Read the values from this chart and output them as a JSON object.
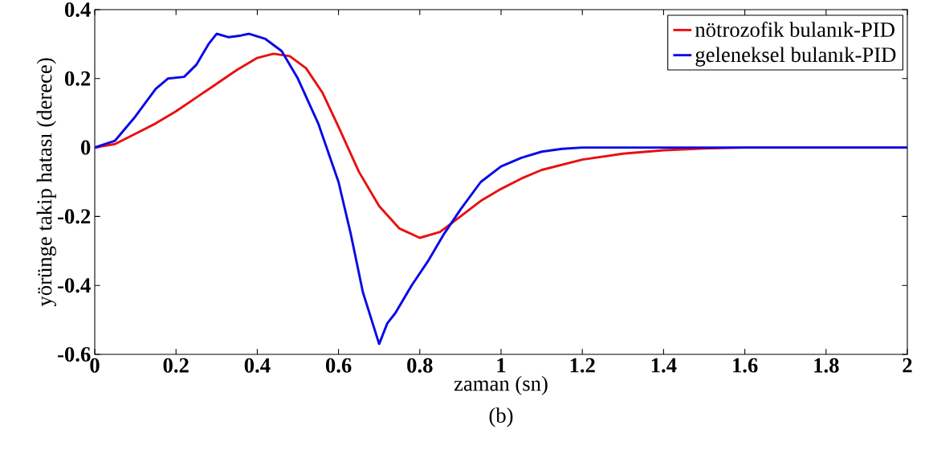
{
  "chart_data": {
    "type": "line",
    "xlabel": "zaman (sn)",
    "ylabel": "yörünge takip hatası (derece)",
    "annotations": [
      "(b)"
    ],
    "xlim": [
      0,
      2
    ],
    "ylim": [
      -0.6,
      0.4
    ],
    "xticks": [
      0,
      0.2,
      0.4,
      0.6,
      0.8,
      1,
      1.2,
      1.4,
      1.6,
      1.8,
      2
    ],
    "yticks": [
      -0.6,
      -0.4,
      -0.2,
      0,
      0.2,
      0.4
    ],
    "grid": false,
    "legend": "top right",
    "line_style": "solid",
    "marker": "none",
    "series": [
      {
        "name": "nötrozofik bulanık-PID",
        "color": "#e81010",
        "x": [
          0,
          0.05,
          0.1,
          0.15,
          0.2,
          0.25,
          0.3,
          0.35,
          0.4,
          0.44,
          0.48,
          0.52,
          0.56,
          0.6,
          0.65,
          0.7,
          0.75,
          0.8,
          0.85,
          0.9,
          0.95,
          1.0,
          1.05,
          1.1,
          1.2,
          1.3,
          1.4,
          1.5,
          1.6,
          2
        ],
        "values": [
          0,
          0.01,
          0.04,
          0.07,
          0.105,
          0.145,
          0.185,
          0.225,
          0.26,
          0.272,
          0.265,
          0.23,
          0.16,
          0.06,
          -0.07,
          -0.17,
          -0.235,
          -0.262,
          -0.245,
          -0.2,
          -0.155,
          -0.12,
          -0.09,
          -0.065,
          -0.035,
          -0.018,
          -0.008,
          -0.003,
          0,
          0
        ]
      },
      {
        "name": "geleneksel bulanık-PID",
        "color": "#0a0ae6",
        "x": [
          0,
          0.05,
          0.1,
          0.15,
          0.18,
          0.22,
          0.25,
          0.28,
          0.3,
          0.33,
          0.36,
          0.38,
          0.42,
          0.46,
          0.5,
          0.55,
          0.6,
          0.63,
          0.66,
          0.7,
          0.72,
          0.74,
          0.78,
          0.82,
          0.86,
          0.9,
          0.95,
          1.0,
          1.05,
          1.1,
          1.15,
          1.2,
          2
        ],
        "values": [
          0,
          0.02,
          0.09,
          0.17,
          0.2,
          0.205,
          0.24,
          0.3,
          0.33,
          0.32,
          0.325,
          0.33,
          0.315,
          0.28,
          0.2,
          0.07,
          -0.1,
          -0.25,
          -0.42,
          -0.57,
          -0.51,
          -0.48,
          -0.4,
          -0.33,
          -0.25,
          -0.18,
          -0.1,
          -0.055,
          -0.03,
          -0.012,
          -0.004,
          0,
          0
        ]
      }
    ]
  }
}
